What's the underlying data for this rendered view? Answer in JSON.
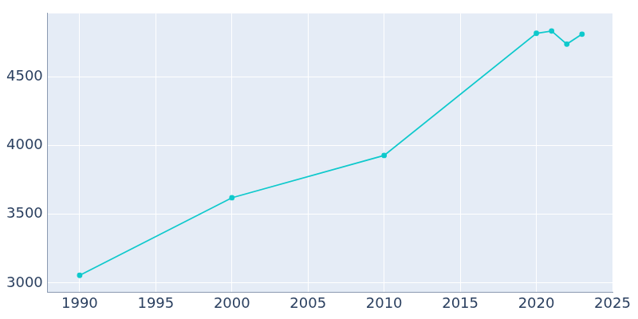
{
  "chart_data": {
    "type": "line",
    "x": [
      1990,
      2000,
      2010,
      2020,
      2021,
      2022,
      2023
    ],
    "values": [
      3056,
      3621,
      3929,
      4819,
      4836,
      4740,
      4813
    ],
    "color": "#0fc9cc",
    "marker": "circle",
    "line_style": "solid",
    "xlim": [
      1987.9,
      2025
    ],
    "xticks": [
      1990,
      1995,
      2000,
      2005,
      2010,
      2015,
      2020,
      2025
    ],
    "ylim": [
      2933,
      4964
    ],
    "yticks": [
      3000,
      3500,
      4000,
      4500
    ],
    "grid": true
  }
}
